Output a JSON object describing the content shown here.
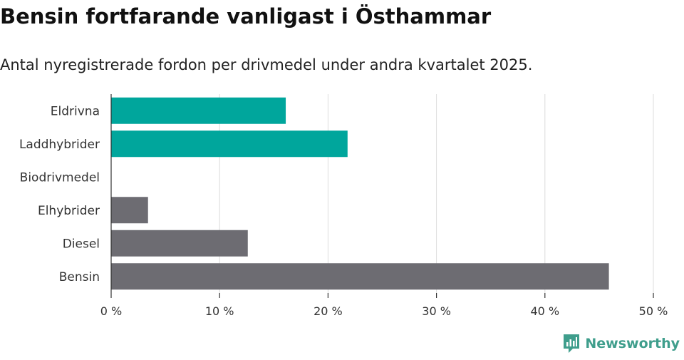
{
  "title": "Bensin fortfarande vanligast i Östhammar",
  "subtitle": "Antal nyregistrerade fordon per drivmedel under andra kvartalet 2025.",
  "brand": {
    "name": "Newsworthy",
    "icon": "newsworthy-logo-icon",
    "color": "#3f9e8c"
  },
  "colors": {
    "highlight": "#00a69c",
    "other": "#6d6c72",
    "grid": "#dcdcdc",
    "axis": "#333333"
  },
  "chart_data": {
    "type": "bar",
    "orientation": "horizontal",
    "categories": [
      "Eldrivna",
      "Laddhybrider",
      "Biodrivmedel",
      "Elhybrider",
      "Diesel",
      "Bensin"
    ],
    "values": [
      16.1,
      21.8,
      0,
      3.4,
      12.6,
      45.9
    ],
    "bar_colors": [
      "#00a69c",
      "#00a69c",
      "#00a69c",
      "#6d6c72",
      "#6d6c72",
      "#6d6c72"
    ],
    "xlim": [
      0,
      50
    ],
    "x_ticks": [
      0,
      10,
      20,
      30,
      40,
      50
    ],
    "x_tick_labels": [
      "0 %",
      "10 %",
      "20 %",
      "30 %",
      "40 %",
      "50 %"
    ],
    "grid": true,
    "legend": "none",
    "xlabel": "",
    "ylabel": ""
  }
}
